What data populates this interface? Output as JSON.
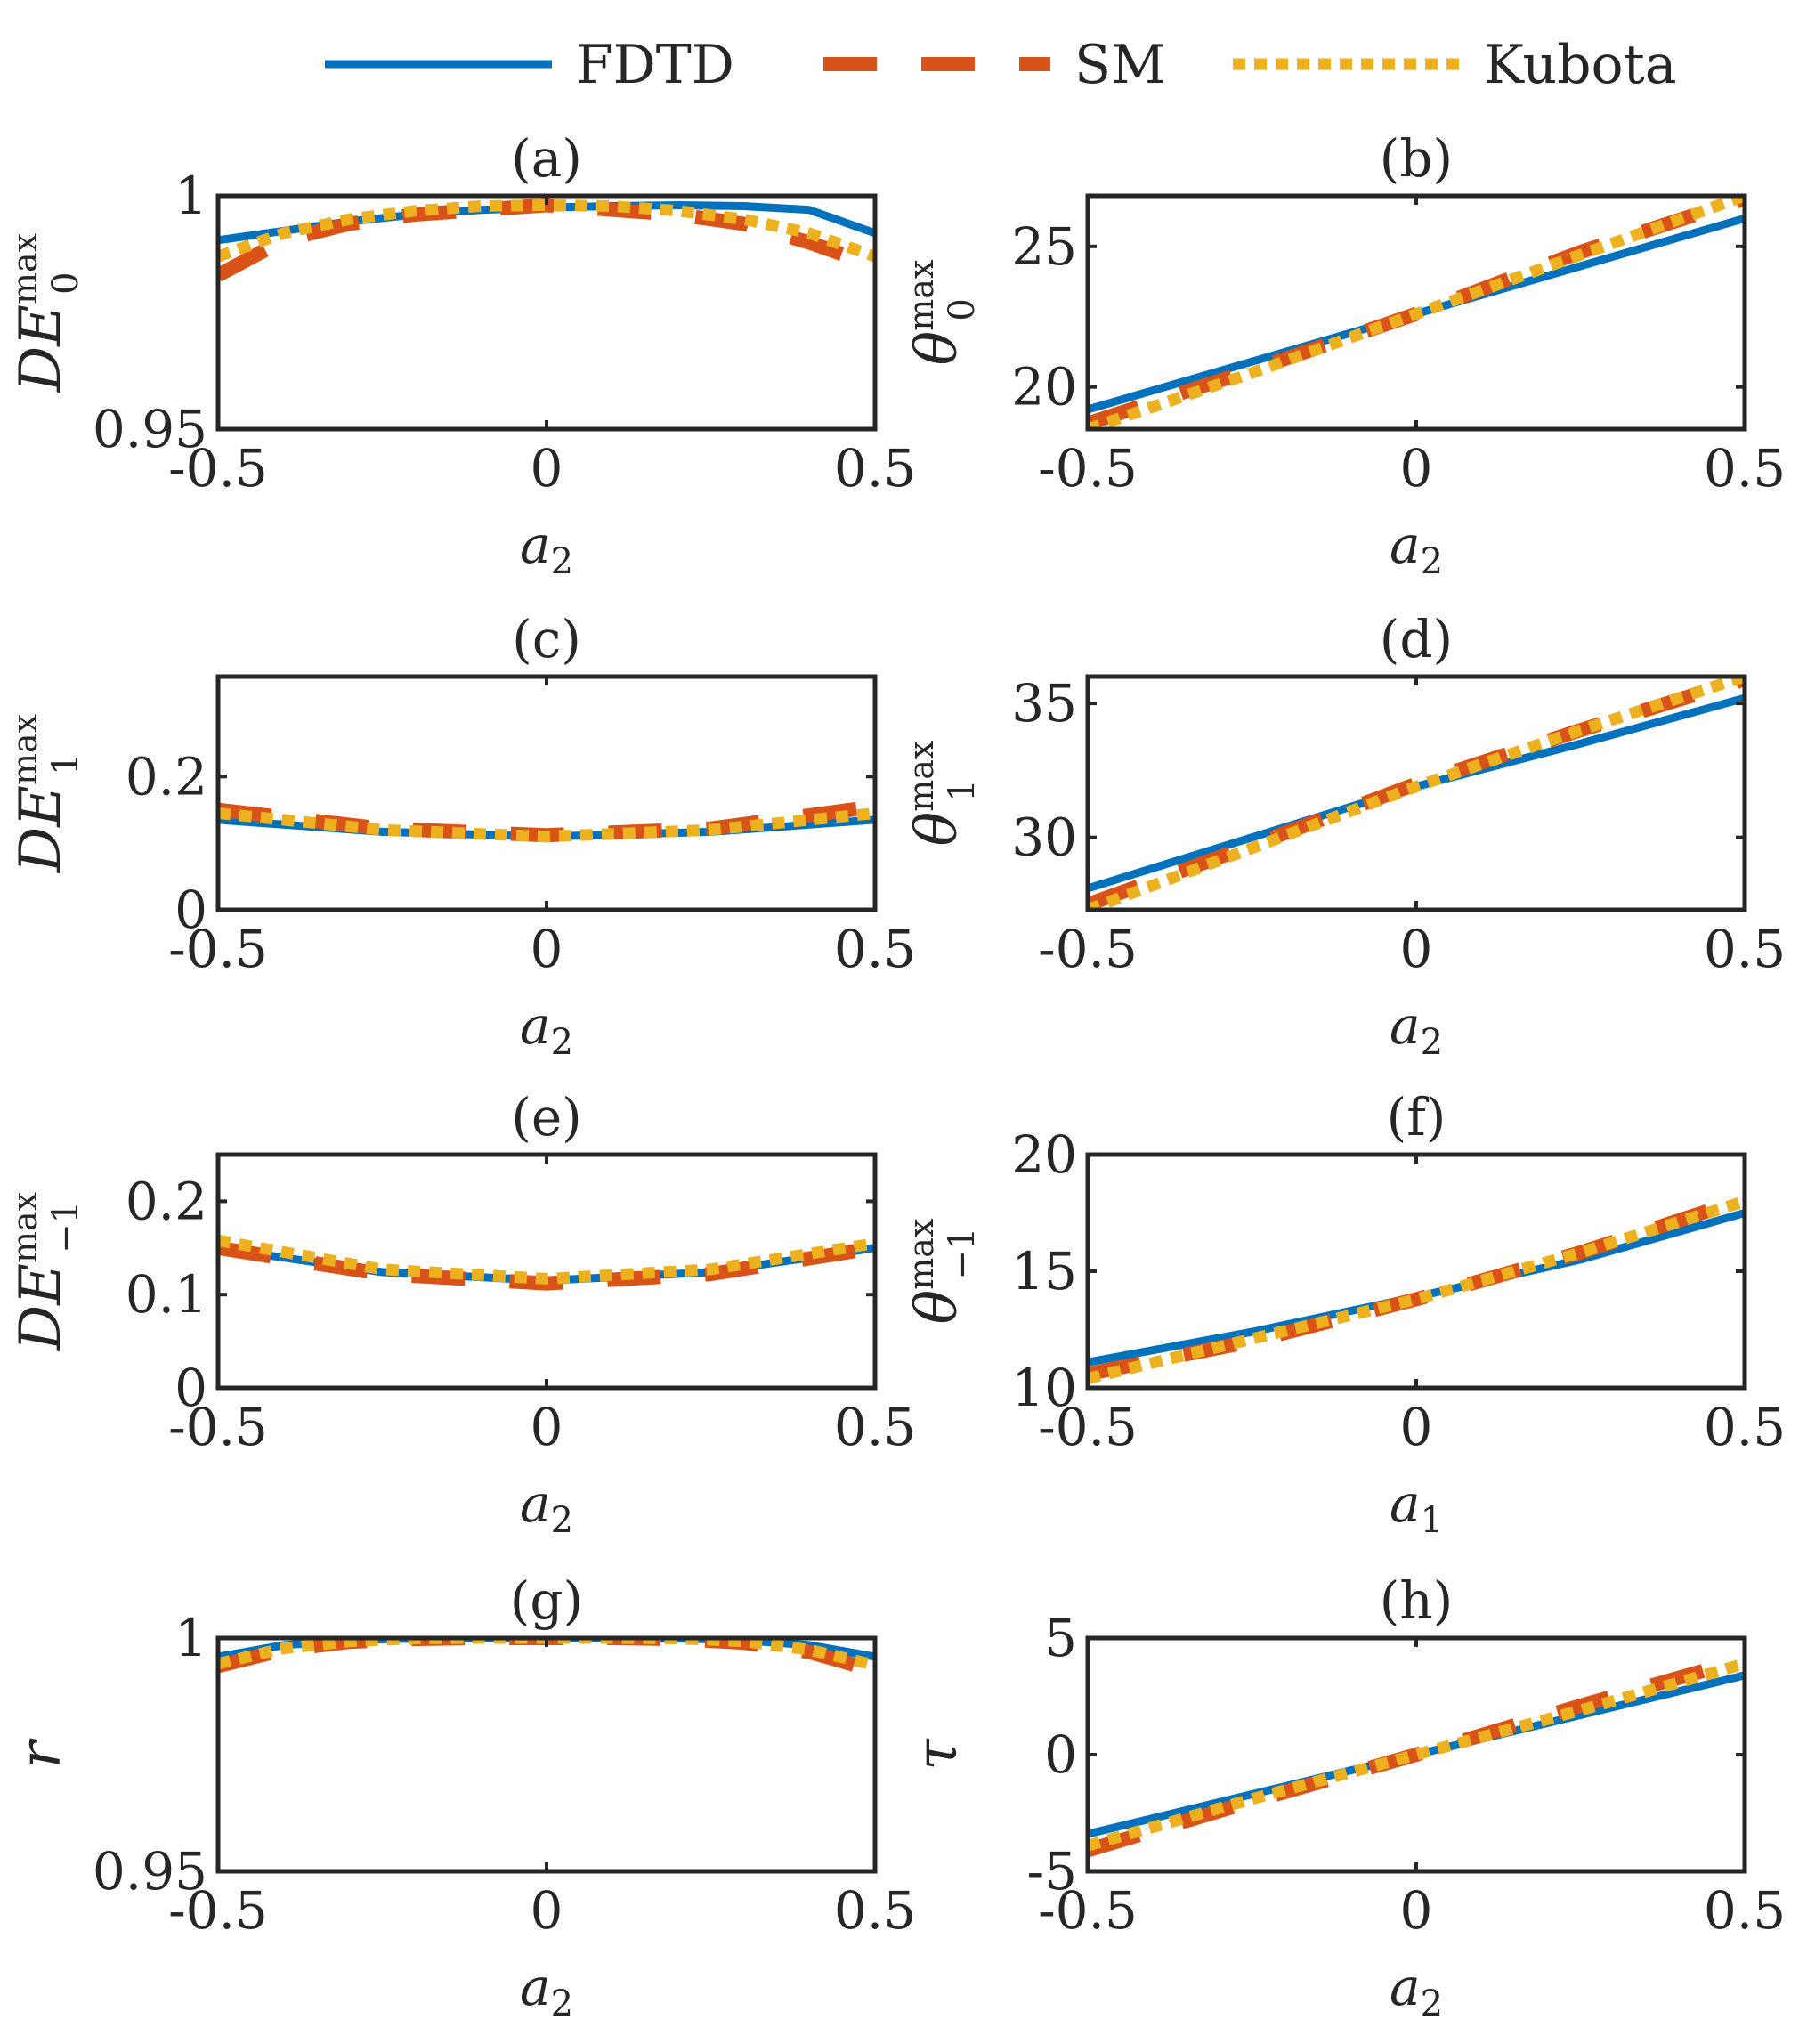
{
  "colors": {
    "FDTD": "#0072BD",
    "SM": "#D95319",
    "Kubota": "#EDB120",
    "axis": "#262626"
  },
  "legend": {
    "placement": "top",
    "entries": [
      "FDTD",
      "SM",
      "Kubota"
    ]
  },
  "chart_data": [
    {
      "type": "line",
      "panel": "a",
      "title": "(a)",
      "xlabel": "a",
      "xlabel_sub": "2",
      "ylabel": "DE",
      "ylabel_sup": "max",
      "ylabel_sub": "0",
      "xlim": [
        -0.5,
        0.5
      ],
      "ylim": [
        0.95,
        1
      ],
      "xticks": [
        -0.5,
        0,
        0.5
      ],
      "xtick_labels": [
        "-0.5",
        "0",
        "0.5"
      ],
      "yticks": [
        0.95,
        1
      ],
      "ytick_labels": [
        "0.95",
        "1"
      ],
      "x": [
        -0.5,
        -0.4,
        -0.3,
        -0.2,
        -0.1,
        0,
        0.1,
        0.2,
        0.3,
        0.4,
        0.5
      ],
      "series": [
        {
          "name": "FDTD",
          "values": [
            0.9905,
            0.9925,
            0.9945,
            0.996,
            0.997,
            0.9975,
            0.9978,
            0.998,
            0.9978,
            0.997,
            0.992
          ]
        },
        {
          "name": "SM",
          "values": [
            0.983,
            0.9905,
            0.994,
            0.996,
            0.997,
            0.998,
            0.997,
            0.996,
            0.994,
            0.99,
            0.985
          ]
        },
        {
          "name": "Kubota",
          "values": [
            0.987,
            0.992,
            0.995,
            0.9968,
            0.9978,
            0.998,
            0.9978,
            0.9968,
            0.995,
            0.992,
            0.987
          ]
        }
      ]
    },
    {
      "type": "line",
      "panel": "b",
      "title": "(b)",
      "xlabel": "a",
      "xlabel_sub": "2",
      "ylabel": "θ",
      "ylabel_sup": "max",
      "ylabel_sub": "0",
      "xlim": [
        -0.5,
        0.5
      ],
      "ylim": [
        18.5,
        26.8
      ],
      "xticks": [
        -0.5,
        0,
        0.5
      ],
      "xtick_labels": [
        "-0.5",
        "0",
        "0.5"
      ],
      "yticks": [
        20,
        25
      ],
      "ytick_labels": [
        "20",
        "25"
      ],
      "x": [
        -0.5,
        -0.25,
        0,
        0.25,
        0.5
      ],
      "series": [
        {
          "name": "FDTD",
          "values": [
            19.2,
            20.9,
            22.6,
            24.3,
            26.0
          ]
        },
        {
          "name": "SM",
          "values": [
            18.7,
            20.6,
            22.6,
            24.8,
            26.7
          ]
        },
        {
          "name": "Kubota",
          "values": [
            18.5,
            20.5,
            22.6,
            24.7,
            26.8
          ]
        }
      ]
    },
    {
      "type": "line",
      "panel": "c",
      "title": "(c)",
      "xlabel": "a",
      "xlabel_sub": "2",
      "ylabel": "DE",
      "ylabel_sup": "max",
      "ylabel_sub": "1",
      "xlim": [
        -0.5,
        0.5
      ],
      "ylim": [
        0,
        0.35
      ],
      "xticks": [
        -0.5,
        0,
        0.5
      ],
      "xtick_labels": [
        "-0.5",
        "0",
        "0.5"
      ],
      "yticks": [
        0,
        0.2
      ],
      "ytick_labels": [
        "0",
        "0.2"
      ],
      "x": [
        -0.5,
        -0.25,
        0,
        0.25,
        0.5
      ],
      "series": [
        {
          "name": "FDTD",
          "values": [
            0.135,
            0.117,
            0.11,
            0.117,
            0.135
          ]
        },
        {
          "name": "SM",
          "values": [
            0.15,
            0.122,
            0.112,
            0.122,
            0.155
          ]
        },
        {
          "name": "Kubota",
          "values": [
            0.145,
            0.12,
            0.11,
            0.12,
            0.145
          ]
        }
      ]
    },
    {
      "type": "line",
      "panel": "d",
      "title": "(d)",
      "xlabel": "a",
      "xlabel_sub": "2",
      "ylabel": "θ",
      "ylabel_sup": "max",
      "ylabel_sub": "1",
      "xlim": [
        -0.5,
        0.5
      ],
      "ylim": [
        27.3,
        36.0
      ],
      "xticks": [
        -0.5,
        0,
        0.5
      ],
      "xtick_labels": [
        "-0.5",
        "0",
        "0.5"
      ],
      "yticks": [
        30,
        35
      ],
      "ytick_labels": [
        "30",
        "35"
      ],
      "x": [
        -0.5,
        -0.25,
        0,
        0.25,
        0.5
      ],
      "series": [
        {
          "name": "FDTD",
          "values": [
            28.1,
            30.0,
            31.9,
            33.5,
            35.2
          ]
        },
        {
          "name": "SM",
          "values": [
            27.5,
            29.7,
            32.0,
            34.0,
            35.9
          ]
        },
        {
          "name": "Kubota",
          "values": [
            27.3,
            29.6,
            31.9,
            34.0,
            36.0
          ]
        }
      ]
    },
    {
      "type": "line",
      "panel": "e",
      "title": "(e)",
      "xlabel": "a",
      "xlabel_sub": "2",
      "ylabel": "DE",
      "ylabel_sup": "max",
      "ylabel_sub": "−1",
      "xlim": [
        -0.5,
        0.5
      ],
      "ylim": [
        0,
        0.25
      ],
      "xticks": [
        -0.5,
        0,
        0.5
      ],
      "xtick_labels": [
        "-0.5",
        "0",
        "0.5"
      ],
      "yticks": [
        0,
        0.1,
        0.2
      ],
      "ytick_labels": [
        "0",
        "0.1",
        "0.2"
      ],
      "x": [
        -0.5,
        -0.25,
        0,
        0.25,
        0.5
      ],
      "series": [
        {
          "name": "FDTD",
          "values": [
            0.15,
            0.124,
            0.115,
            0.124,
            0.15
          ]
        },
        {
          "name": "SM",
          "values": [
            0.15,
            0.122,
            0.112,
            0.122,
            0.15
          ]
        },
        {
          "name": "Kubota",
          "values": [
            0.158,
            0.127,
            0.117,
            0.127,
            0.155
          ]
        }
      ]
    },
    {
      "type": "line",
      "panel": "f",
      "title": "(f)",
      "xlabel": "a",
      "xlabel_sub": "1",
      "ylabel": "θ",
      "ylabel_sup": "max",
      "ylabel_sub": "−1",
      "xlim": [
        -0.5,
        0.5
      ],
      "ylim": [
        10,
        20
      ],
      "xticks": [
        -0.5,
        0,
        0.5
      ],
      "xtick_labels": [
        "-0.5",
        "0",
        "0.5"
      ],
      "yticks": [
        10,
        15,
        20
      ],
      "ytick_labels": [
        "10",
        "15",
        "20"
      ],
      "x": [
        -0.5,
        -0.25,
        0,
        0.25,
        0.5
      ],
      "series": [
        {
          "name": "FDTD",
          "values": [
            11.1,
            12.4,
            13.9,
            15.5,
            17.5
          ]
        },
        {
          "name": "SM",
          "values": [
            10.6,
            12.0,
            13.8,
            15.8,
            18.1
          ]
        },
        {
          "name": "Kubota",
          "values": [
            10.4,
            12.1,
            13.8,
            15.8,
            18.0
          ]
        }
      ]
    },
    {
      "type": "line",
      "panel": "g",
      "title": "(g)",
      "xlabel": "a",
      "xlabel_sub": "2",
      "ylabel": "r",
      "ylabel_sup": "",
      "ylabel_sub": "",
      "xlim": [
        -0.5,
        0.5
      ],
      "ylim": [
        0.95,
        1
      ],
      "xticks": [
        -0.5,
        0,
        0.5
      ],
      "xtick_labels": [
        "-0.5",
        "0",
        "0.5"
      ],
      "yticks": [
        0.95,
        1
      ],
      "ytick_labels": [
        "0.95",
        "1"
      ],
      "x": [
        -0.5,
        -0.4,
        -0.3,
        -0.2,
        -0.1,
        0,
        0.1,
        0.2,
        0.3,
        0.4,
        0.5
      ],
      "series": [
        {
          "name": "FDTD",
          "values": [
            0.996,
            0.9985,
            0.9995,
            0.9999,
            1.0,
            1.0,
            1.0,
            0.9999,
            0.9995,
            0.9985,
            0.996
          ]
        },
        {
          "name": "SM",
          "values": [
            0.994,
            0.9975,
            0.9992,
            0.9998,
            1.0,
            1.0,
            1.0,
            0.9998,
            0.999,
            0.997,
            0.993
          ]
        },
        {
          "name": "Kubota",
          "values": [
            0.9945,
            0.9978,
            0.9993,
            0.9999,
            1.0,
            1.0,
            1.0,
            0.9999,
            0.9993,
            0.9975,
            0.9942
          ]
        }
      ]
    },
    {
      "type": "line",
      "panel": "h",
      "title": "(h)",
      "xlabel": "a",
      "xlabel_sub": "2",
      "ylabel": "τ",
      "ylabel_sup": "",
      "ylabel_sub": "",
      "xlim": [
        -0.5,
        0.5
      ],
      "ylim": [
        -5,
        5
      ],
      "xticks": [
        -0.5,
        0,
        0.5
      ],
      "xtick_labels": [
        "-0.5",
        "0",
        "0.5"
      ],
      "yticks": [
        -5,
        0,
        5
      ],
      "ytick_labels": [
        "-5",
        "0",
        "5"
      ],
      "x": [
        -0.5,
        -0.25,
        0,
        0.25,
        0.5
      ],
      "series": [
        {
          "name": "FDTD",
          "values": [
            -3.4,
            -1.7,
            0.0,
            1.7,
            3.4
          ]
        },
        {
          "name": "SM",
          "values": [
            -4.1,
            -2.0,
            0.0,
            2.1,
            4.1
          ]
        },
        {
          "name": "Kubota",
          "values": [
            -3.9,
            -1.9,
            0.0,
            1.9,
            3.9
          ]
        }
      ]
    }
  ]
}
